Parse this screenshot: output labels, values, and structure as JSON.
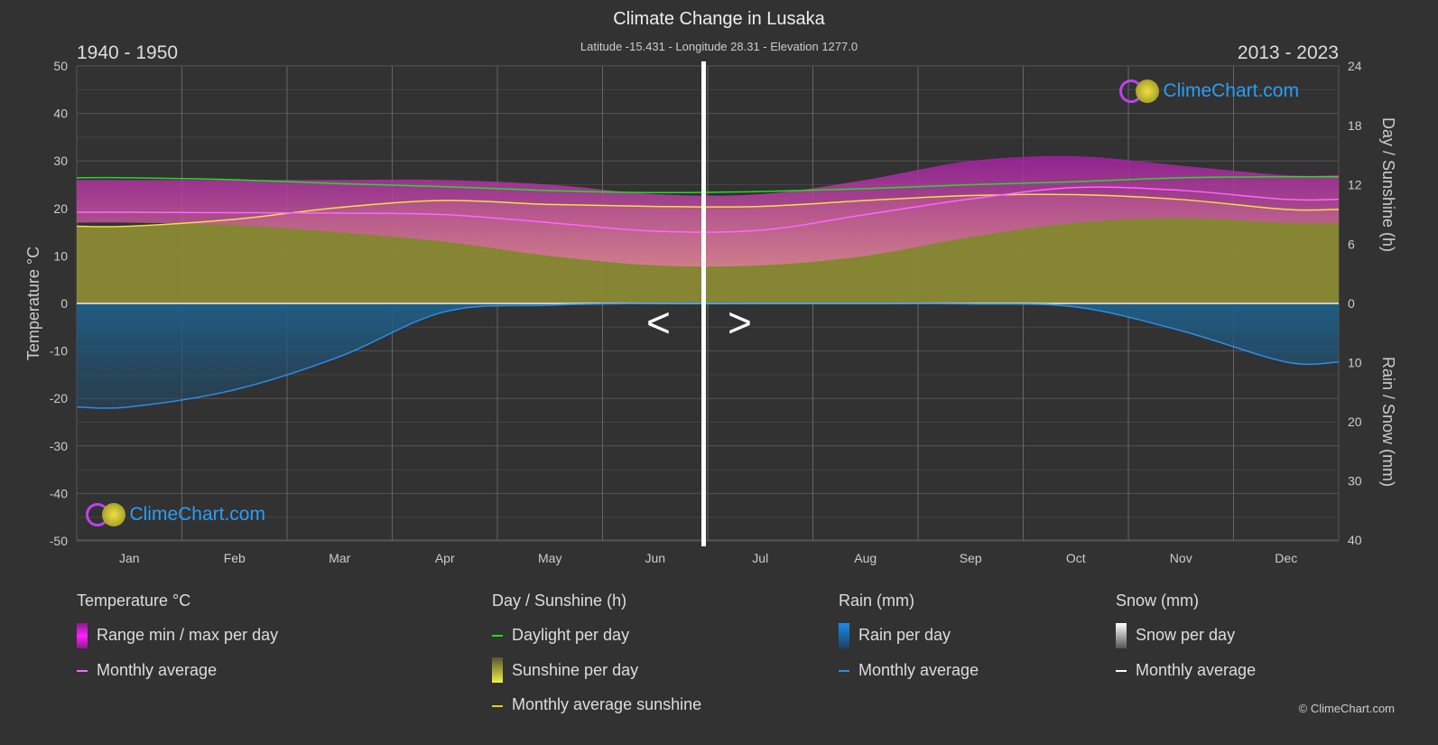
{
  "header": {
    "title": "Climate Change in Lusaka",
    "subtitle": "Latitude -15.431 - Longitude 28.31 - Elevation 1277.0",
    "period_left": "1940 - 1950",
    "period_right": "2013 - 2023",
    "nav_prev": "<",
    "nav_next": ">"
  },
  "logo_text": "ClimeChart.com",
  "copyright": "© ClimeChart.com",
  "chart_data": {
    "type": "area",
    "title": "Climate Change in Lusaka",
    "categories": [
      "Jan",
      "Feb",
      "Mar",
      "Apr",
      "May",
      "Jun",
      "Jul",
      "Aug",
      "Sep",
      "Oct",
      "Nov",
      "Dec"
    ],
    "axes": {
      "left": {
        "label": "Temperature °C",
        "range": [
          -50,
          50
        ],
        "ticks": [
          "50",
          "40",
          "30",
          "20",
          "10",
          "0",
          "-10",
          "-20",
          "-30",
          "-40",
          "-50"
        ]
      },
      "right_top": {
        "label": "Day / Sunshine (h)",
        "range": [
          0,
          24
        ],
        "ticks": [
          "24",
          "18",
          "12",
          "6",
          "0"
        ]
      },
      "right_bottom": {
        "label": "Rain / Snow (mm)",
        "range": [
          0,
          40
        ],
        "ticks": [
          "10",
          "20",
          "30",
          "40"
        ]
      }
    },
    "grid": true,
    "series": [
      {
        "name": "Range min / max per day",
        "kind": "temp_range",
        "color": "#c020c0",
        "min": [
          17,
          16.5,
          15,
          13,
          10,
          8,
          8,
          10,
          14,
          17,
          18,
          17
        ],
        "max": [
          26,
          26,
          26,
          26,
          25,
          23,
          23,
          26,
          30,
          31,
          29,
          27
        ]
      },
      {
        "name": "Monthly average",
        "kind": "temp_avg",
        "color": "#ff66ff",
        "values": [
          19.2,
          19.1,
          19,
          18.7,
          17,
          15.2,
          15.4,
          18.7,
          22,
          24.4,
          23.8,
          21.9
        ]
      },
      {
        "name": "Daylight per day",
        "kind": "daylight",
        "color": "#22dd22",
        "values": [
          12.7,
          12.5,
          12.1,
          11.8,
          11.4,
          11.2,
          11.3,
          11.6,
          12,
          12.3,
          12.7,
          12.8
        ]
      },
      {
        "name": "Sunshine per day",
        "kind": "sunshine_area",
        "color": "#8a8a35",
        "values": [
          7.8,
          8.5,
          9.7,
          10.4,
          10,
          9.8,
          9.8,
          10.4,
          10.9,
          11,
          10.5,
          9.5
        ]
      },
      {
        "name": "Monthly average sunshine",
        "kind": "sunshine_avg",
        "color": "#f0e040",
        "values": [
          7.8,
          8.5,
          9.7,
          10.4,
          10,
          9.8,
          9.8,
          10.4,
          10.9,
          11,
          10.5,
          9.5
        ]
      },
      {
        "name": "Rain per day",
        "kind": "rain_area",
        "color": "#1f5a80",
        "values": [
          17.5,
          14.6,
          9,
          1.4,
          0.3,
          0,
          0,
          0,
          0.1,
          0.6,
          4.6,
          9.9
        ]
      },
      {
        "name": "Monthly average",
        "kind": "rain_avg",
        "color": "#2a8ee8",
        "values": [
          17.5,
          14.6,
          9,
          1.4,
          0.3,
          0,
          0,
          0,
          0.1,
          0.6,
          4.6,
          9.9
        ]
      }
    ]
  },
  "legend": {
    "temperature": {
      "heading": "Temperature °C",
      "items": [
        "Range min / max per day",
        "Monthly average"
      ]
    },
    "sunshine": {
      "heading": "Day / Sunshine (h)",
      "items": [
        "Daylight per day",
        "Sunshine per day",
        "Monthly average sunshine"
      ]
    },
    "rain": {
      "heading": "Rain (mm)",
      "items": [
        "Rain per day",
        "Monthly average"
      ]
    },
    "snow": {
      "heading": "Snow (mm)",
      "items": [
        "Snow per day",
        "Monthly average"
      ]
    }
  }
}
